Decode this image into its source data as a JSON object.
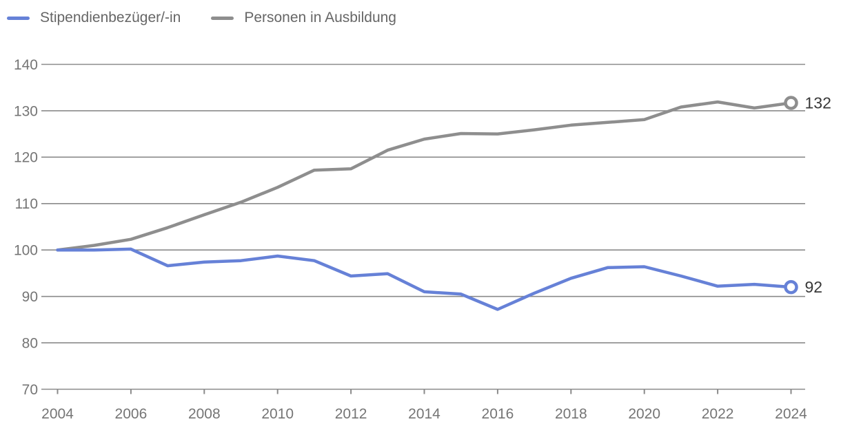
{
  "legend": [
    {
      "label": "Stipendienbezüger/-in",
      "color": "#6681d7"
    },
    {
      "label": "Personen in Ausbildung",
      "color": "#8e8e8e"
    }
  ],
  "chart_data": {
    "type": "line",
    "title": "",
    "xlabel": "",
    "ylabel": "",
    "x": [
      2004,
      2005,
      2006,
      2007,
      2008,
      2009,
      2010,
      2011,
      2012,
      2013,
      2014,
      2015,
      2016,
      2017,
      2018,
      2019,
      2020,
      2021,
      2022,
      2023,
      2024
    ],
    "xticks": [
      2004,
      2006,
      2008,
      2010,
      2012,
      2014,
      2016,
      2018,
      2020,
      2022,
      2024
    ],
    "ylim": [
      70,
      140
    ],
    "yticks": [
      70,
      80,
      90,
      100,
      110,
      120,
      130,
      140
    ],
    "grid": true,
    "legend_position": "top-left",
    "series": [
      {
        "name": "Stipendienbezüger/-in",
        "color": "#6681d7",
        "end_label": "92",
        "values": [
          100,
          100,
          100.2,
          96.6,
          97.4,
          97.7,
          98.7,
          97.7,
          94.4,
          94.9,
          91,
          90.5,
          87.2,
          90.7,
          93.9,
          96.2,
          96.4,
          94.4,
          92.2,
          92.6,
          92
        ]
      },
      {
        "name": "Personen in Ausbildung",
        "color": "#8e8e8e",
        "end_label": "132",
        "values": [
          100,
          101,
          102.3,
          104.8,
          107.6,
          110.3,
          113.5,
          117.2,
          117.5,
          121.5,
          123.9,
          125.1,
          125,
          125.9,
          126.9,
          127.5,
          128.1,
          130.8,
          131.9,
          130.6,
          131.7
        ]
      }
    ],
    "colors": {
      "gridline": "#8a8a8a",
      "axis_label": "#757575",
      "end_label": "#383838"
    }
  }
}
